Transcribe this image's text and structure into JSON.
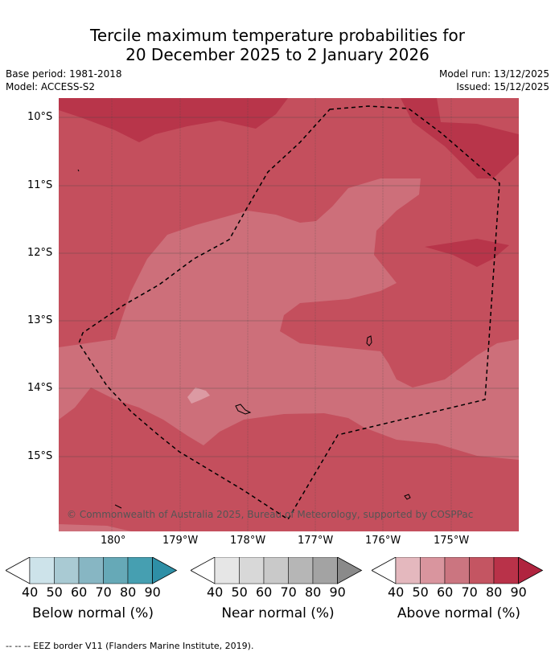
{
  "title_line1": "Tercile maximum temperature probabilities for",
  "title_line2": "20 December 2025 to 2 January 2026",
  "base_period": "Base period: 1981-2018",
  "model": "Model: ACCESS-S2",
  "model_run": "Model run: 13/12/2025",
  "issued": "Issued: 15/12/2025",
  "lat_labels": [
    "10°S",
    "11°S",
    "12°S",
    "13°S",
    "14°S",
    "15°S"
  ],
  "lon_labels": [
    "180°",
    "179°W",
    "178°W",
    "177°W",
    "176°W",
    "175°W"
  ],
  "copyright": "© Commonwealth of Australia 2025, Bureau of Meteorology, supported by COSPPac",
  "colorbars": [
    {
      "name": "Below normal (%)",
      "ticks": [
        "40",
        "50",
        "60",
        "70",
        "80",
        "90"
      ],
      "colors": [
        "#cde3ea",
        "#a9cad3",
        "#87b6c3",
        "#66a9b7",
        "#469fb1",
        "#2e8fa6"
      ]
    },
    {
      "name": "Near normal (%)",
      "ticks": [
        "40",
        "50",
        "60",
        "70",
        "80",
        "90"
      ],
      "colors": [
        "#e6e6e6",
        "#d8d8d8",
        "#c9c9c9",
        "#b6b6b6",
        "#a3a3a3",
        "#8a8a8a"
      ]
    },
    {
      "name": "Above normal (%)",
      "ticks": [
        "40",
        "50",
        "60",
        "70",
        "80",
        "90"
      ],
      "colors": [
        "#e4b8be",
        "#d9959e",
        "#cb7580",
        "#c45562",
        "#b93249",
        "#b0243f"
      ]
    }
  ],
  "footnote": "--  --  -- EEZ border V11 (Flanders Marine Institute, 2019).",
  "map_colors": {
    "c60": "#cd6f7a",
    "c70": "#c44f5d",
    "c80": "#b8354a",
    "c50": "#dc9aa3"
  }
}
